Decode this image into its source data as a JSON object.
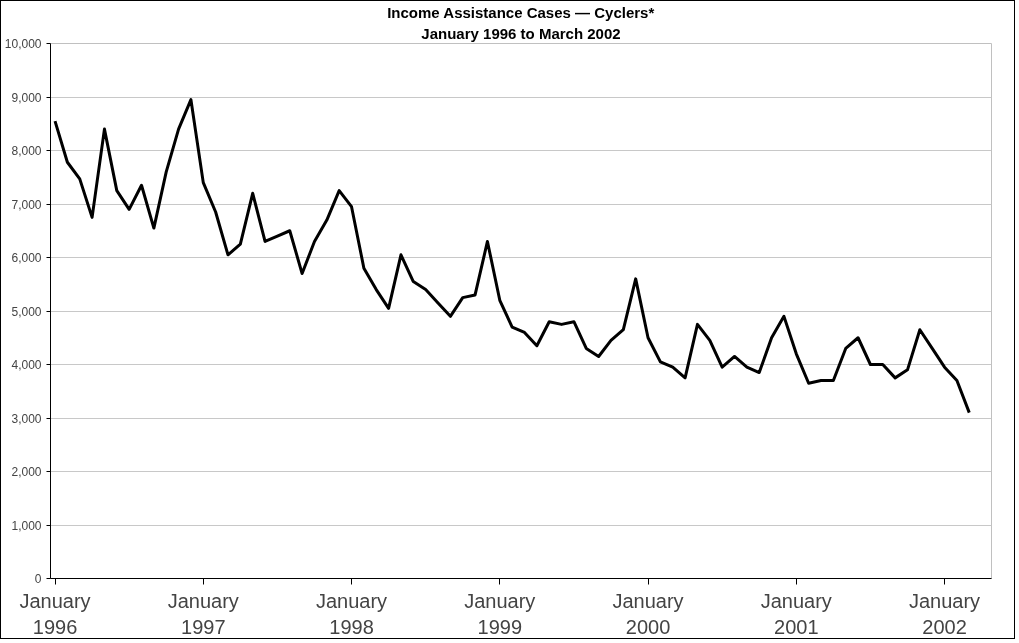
{
  "chart_data": {
    "type": "line",
    "title": "Income Assistance Cases — Cyclers*",
    "subtitle": "January 1996 to March 2002",
    "x": [
      "1996-01",
      "1996-02",
      "1996-03",
      "1996-04",
      "1996-05",
      "1996-06",
      "1996-07",
      "1996-08",
      "1996-09",
      "1996-10",
      "1996-11",
      "1996-12",
      "1997-01",
      "1997-02",
      "1997-03",
      "1997-04",
      "1997-05",
      "1997-06",
      "1997-07",
      "1997-08",
      "1997-09",
      "1997-10",
      "1997-11",
      "1997-12",
      "1998-01",
      "1998-02",
      "1998-03",
      "1998-04",
      "1998-05",
      "1998-06",
      "1998-07",
      "1998-08",
      "1998-09",
      "1998-10",
      "1998-11",
      "1998-12",
      "1999-01",
      "1999-02",
      "1999-03",
      "1999-04",
      "1999-05",
      "1999-06",
      "1999-07",
      "1999-08",
      "1999-09",
      "1999-10",
      "1999-11",
      "1999-12",
      "2000-01",
      "2000-02",
      "2000-03",
      "2000-04",
      "2000-05",
      "2000-06",
      "2000-07",
      "2000-08",
      "2000-09",
      "2000-10",
      "2000-11",
      "2000-12",
      "2001-01",
      "2001-02",
      "2001-03",
      "2001-04",
      "2001-05",
      "2001-06",
      "2001-07",
      "2001-08",
      "2001-09",
      "2001-10",
      "2001-11",
      "2001-12",
      "2002-01",
      "2002-02",
      "2002-03"
    ],
    "series": [
      {
        "color": "#000000",
        "values": [
          8550,
          7780,
          7470,
          6750,
          8400,
          7250,
          6900,
          7350,
          6550,
          7600,
          8400,
          8950,
          7400,
          6850,
          6050,
          6250,
          7200,
          6300,
          6400,
          6500,
          5700,
          6300,
          6700,
          7250,
          6950,
          5800,
          5400,
          5050,
          6050,
          5550,
          5400,
          5150,
          4900,
          5250,
          5300,
          6300,
          5200,
          4700,
          4600,
          4350,
          4800,
          4750,
          4800,
          4300,
          4150,
          4450,
          4650,
          5600,
          4500,
          4050,
          3950,
          3750,
          4750,
          4450,
          3950,
          4150,
          3950,
          3850,
          4500,
          4900,
          4200,
          3650,
          3700,
          3700,
          4300,
          4500,
          4000,
          4000,
          3750,
          3900,
          4650,
          4300,
          3950,
          3700,
          3100
        ]
      }
    ],
    "xlim": [
      "1995-12-20",
      "2002-04-25"
    ],
    "xticks": [
      {
        "value": "1996-01",
        "label": "January\n1996"
      },
      {
        "value": "1997-01",
        "label": "January\n1997"
      },
      {
        "value": "1998-01",
        "label": "January\n1998"
      },
      {
        "value": "1999-01",
        "label": "January\n1999"
      },
      {
        "value": "2000-01",
        "label": "January\n2000"
      },
      {
        "value": "2001-01",
        "label": "January\n2001"
      },
      {
        "value": "2002-01",
        "label": "January\n2002"
      }
    ],
    "ylim": [
      0,
      10000
    ],
    "yticks": [
      0,
      {
        "value": 1000,
        "label": "1,000"
      },
      {
        "value": 2000,
        "label": "2,000"
      },
      {
        "value": 3000,
        "label": "3,000"
      },
      {
        "value": 4000,
        "label": "4,000"
      },
      {
        "value": 5000,
        "label": "5,000"
      },
      {
        "value": 6000,
        "label": "6,000"
      },
      {
        "value": 7000,
        "label": "7,000"
      },
      {
        "value": 8000,
        "label": "8,000"
      },
      {
        "value": 9000,
        "label": "9,000"
      },
      {
        "value": 10000,
        "label": "10,000"
      }
    ],
    "grid": "y",
    "marker": "none",
    "line_style": "solid"
  }
}
